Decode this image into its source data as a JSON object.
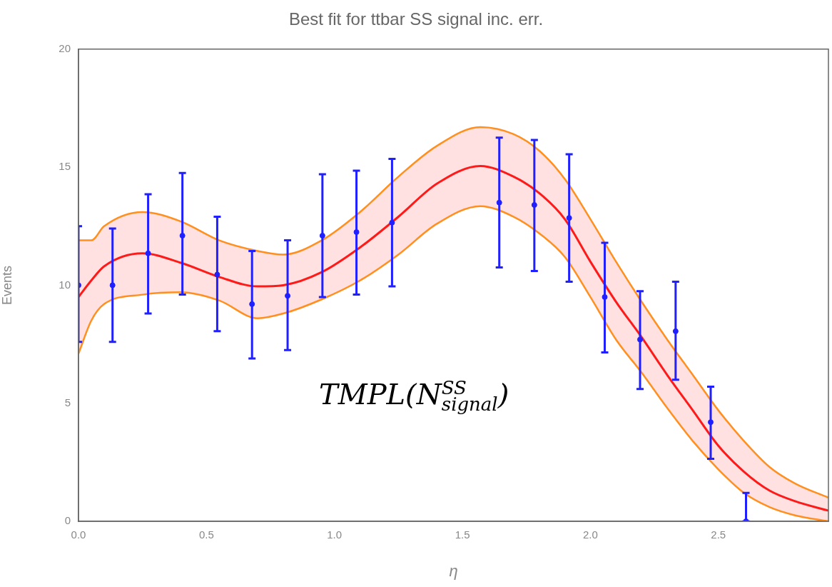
{
  "chart_data": {
    "type": "scatter",
    "title": "Best fit for ttbar SS signal inc. err.",
    "xlabel": "η",
    "ylabel": "Events",
    "xlim": [
      0,
      2.93
    ],
    "xticks": [
      {
        "value": 0,
        "label": "0.0"
      },
      {
        "value": 0.5,
        "label": "0.5"
      },
      {
        "value": 1,
        "label": "1.0"
      },
      {
        "value": 1.5,
        "label": "1.5"
      },
      {
        "value": 2,
        "label": "2.0"
      },
      {
        "value": 2.5,
        "label": "2.5"
      }
    ],
    "ylim": [
      0,
      20
    ],
    "yticks": [
      0,
      5,
      10,
      15,
      20
    ],
    "grid": false,
    "legend": false,
    "annotations": [
      "TMPL(N$^{SS}$$_{signal}$)"
    ],
    "series": [
      {
        "color": "#2020ff",
        "marker": "circle",
        "x": [
          0,
          0.133,
          0.272,
          0.406,
          0.542,
          0.678,
          0.817,
          0.953,
          1.086,
          1.225,
          1.644,
          1.781,
          1.917,
          2.056,
          2.194,
          2.333,
          2.47,
          2.608
        ],
        "values": [
          10,
          10,
          11.35,
          12.1,
          10.45,
          9.2,
          9.55,
          12.1,
          12.25,
          12.65,
          13.5,
          13.4,
          12.85,
          9.5,
          7.7,
          8.05,
          4.2,
          0
        ],
        "errors": [
          [
            7.6,
            12.5
          ],
          [
            7.6,
            12.4
          ],
          [
            8.8,
            13.85
          ],
          [
            9.6,
            14.75
          ],
          [
            8.05,
            12.9
          ],
          [
            6.9,
            11.45
          ],
          [
            7.25,
            11.9
          ],
          [
            9.5,
            14.7
          ],
          [
            9.6,
            14.85
          ],
          [
            9.95,
            15.35
          ],
          [
            10.75,
            16.25
          ],
          [
            10.6,
            16.15
          ],
          [
            10.15,
            15.55
          ],
          [
            7.15,
            11.8
          ],
          [
            5.6,
            9.75
          ],
          [
            6,
            10.15
          ],
          [
            2.65,
            5.7
          ],
          [
            0,
            1.2
          ]
        ]
      },
      {
        "type": "line",
        "color": "#ff1a1a",
        "x": [
          0,
          0.05,
          0.1,
          0.25,
          0.4,
          0.55,
          0.7,
          0.8,
          0.95,
          1.1,
          1.25,
          1.4,
          1.57,
          1.7,
          1.8,
          1.9,
          2,
          2.1,
          2.2,
          2.3,
          2.4,
          2.5,
          2.6,
          2.7,
          2.8,
          2.93
        ],
        "values": [
          9.5,
          10.2,
          10.8,
          11.35,
          10.95,
          10.35,
          9.95,
          10,
          10.55,
          11.6,
          12.9,
          14.3,
          15.05,
          14.6,
          13.9,
          12.8,
          11,
          9.3,
          7.8,
          6.2,
          4.7,
          3.2,
          2.1,
          1.3,
          0.85,
          0.45
        ],
        "upper": [
          11.9,
          11.9,
          12.5,
          13.1,
          12.7,
          11.9,
          11.45,
          11.3,
          11.9,
          13.1,
          14.6,
          15.9,
          16.7,
          16.4,
          15.7,
          14.5,
          12.8,
          11,
          9.3,
          7.7,
          6.2,
          4.7,
          3.4,
          2.3,
          1.6,
          1
        ],
        "lower": [
          7.1,
          8.5,
          9.2,
          9.6,
          9.7,
          9.35,
          8.6,
          8.8,
          9.4,
          10.2,
          11.3,
          12.6,
          13.35,
          12.9,
          12.2,
          11.2,
          9.5,
          7.7,
          6.3,
          4.8,
          3.4,
          2.2,
          1.2,
          0.6,
          0.25,
          0
        ]
      },
      {
        "type": "line",
        "color": "#ff9020",
        "x": [
          0,
          0.05,
          0.1,
          0.25,
          0.4,
          0.55,
          0.7,
          0.8,
          0.95,
          1.1,
          1.25,
          1.4,
          1.57,
          1.7,
          1.8,
          1.9,
          2,
          2.1,
          2.2,
          2.3,
          2.4,
          2.5,
          2.6,
          2.7,
          2.8,
          2.93
        ],
        "values": [
          11.9,
          11.9,
          12.5,
          13.1,
          12.7,
          11.9,
          11.45,
          11.3,
          11.9,
          13.1,
          14.6,
          15.9,
          16.7,
          16.4,
          15.7,
          14.5,
          12.8,
          11,
          9.3,
          7.7,
          6.2,
          4.7,
          3.4,
          2.3,
          1.6,
          1
        ]
      },
      {
        "type": "line",
        "color": "#ff9020",
        "x": [
          0,
          0.05,
          0.1,
          0.25,
          0.4,
          0.55,
          0.7,
          0.8,
          0.95,
          1.1,
          1.25,
          1.4,
          1.57,
          1.7,
          1.8,
          1.9,
          2,
          2.1,
          2.2,
          2.3,
          2.4,
          2.5,
          2.6,
          2.7,
          2.8,
          2.93
        ],
        "values": [
          7.1,
          8.5,
          9.2,
          9.6,
          9.7,
          9.35,
          8.6,
          8.8,
          9.4,
          10.2,
          11.3,
          12.6,
          13.35,
          12.9,
          12.2,
          11.2,
          9.5,
          7.7,
          6.3,
          4.8,
          3.4,
          2.2,
          1.2,
          0.6,
          0.25,
          0
        ]
      }
    ]
  }
}
